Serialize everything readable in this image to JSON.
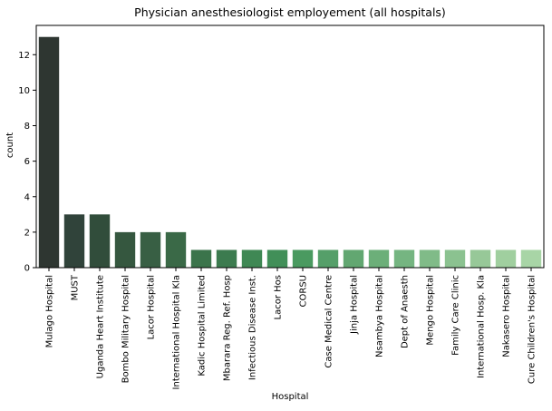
{
  "chart_data": {
    "type": "bar",
    "title": "Physician anesthesiologist employement (all hospitals)",
    "xlabel": "Hospital",
    "ylabel": "count",
    "ylim": [
      0,
      13.65
    ],
    "yticks": [
      0,
      2,
      4,
      6,
      8,
      10,
      12
    ],
    "grid": false,
    "categories": [
      "Mulago Hospital",
      "MUST",
      "Uganda Heart Institute",
      "Bombo Military Hospital",
      "Lacor Hospital",
      "International Hospital Kla",
      "Kadic Hospital Limited",
      "Mbarara Reg. Ref. Hosp",
      "Infectious Disease Inst.",
      "Lacor Hos",
      "CORSU",
      "Case Medical Centre",
      "Jinja Hospital",
      "Nsambya Hospital",
      "Dept of Anaesth",
      "Mengo Hospital",
      "Family Care Clinic",
      "International Hosp. Kla",
      "Nakasero Hospital",
      "Cure Children's Hospital"
    ],
    "values": [
      13,
      3,
      3,
      2,
      2,
      2,
      1,
      1,
      1,
      1,
      1,
      1,
      1,
      1,
      1,
      1,
      1,
      1,
      1,
      1
    ],
    "colors": [
      "#2e3631",
      "#30433a",
      "#314d3b",
      "#35573f",
      "#385f44",
      "#3a6947",
      "#3b744b",
      "#3c7b4f",
      "#3f8854",
      "#418f58",
      "#4a9a60",
      "#559f69",
      "#62a771",
      "#6caf79",
      "#75b581",
      "#80bb88",
      "#8bc290",
      "#97c898",
      "#a0cf9f",
      "#a8d5a6"
    ]
  }
}
